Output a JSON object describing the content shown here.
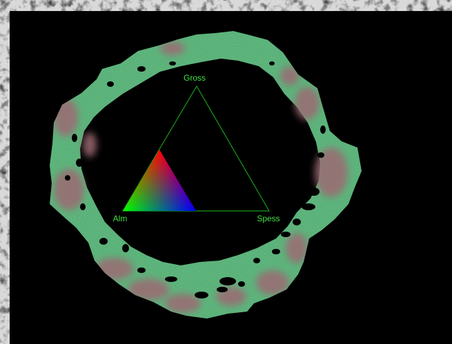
{
  "ternary": {
    "vertices": {
      "top": "Gross",
      "left": "Alm",
      "right": "Spess"
    },
    "key_colors": {
      "apex": "#ff0000",
      "left": "#00ff00",
      "right": "#0000ff"
    },
    "line_color": "#1a9a1a",
    "label_color": "#3fe63f"
  },
  "map": {
    "ring_color": "#3cb872",
    "almandine_tint": "#9c6a73",
    "background": "#000000"
  }
}
